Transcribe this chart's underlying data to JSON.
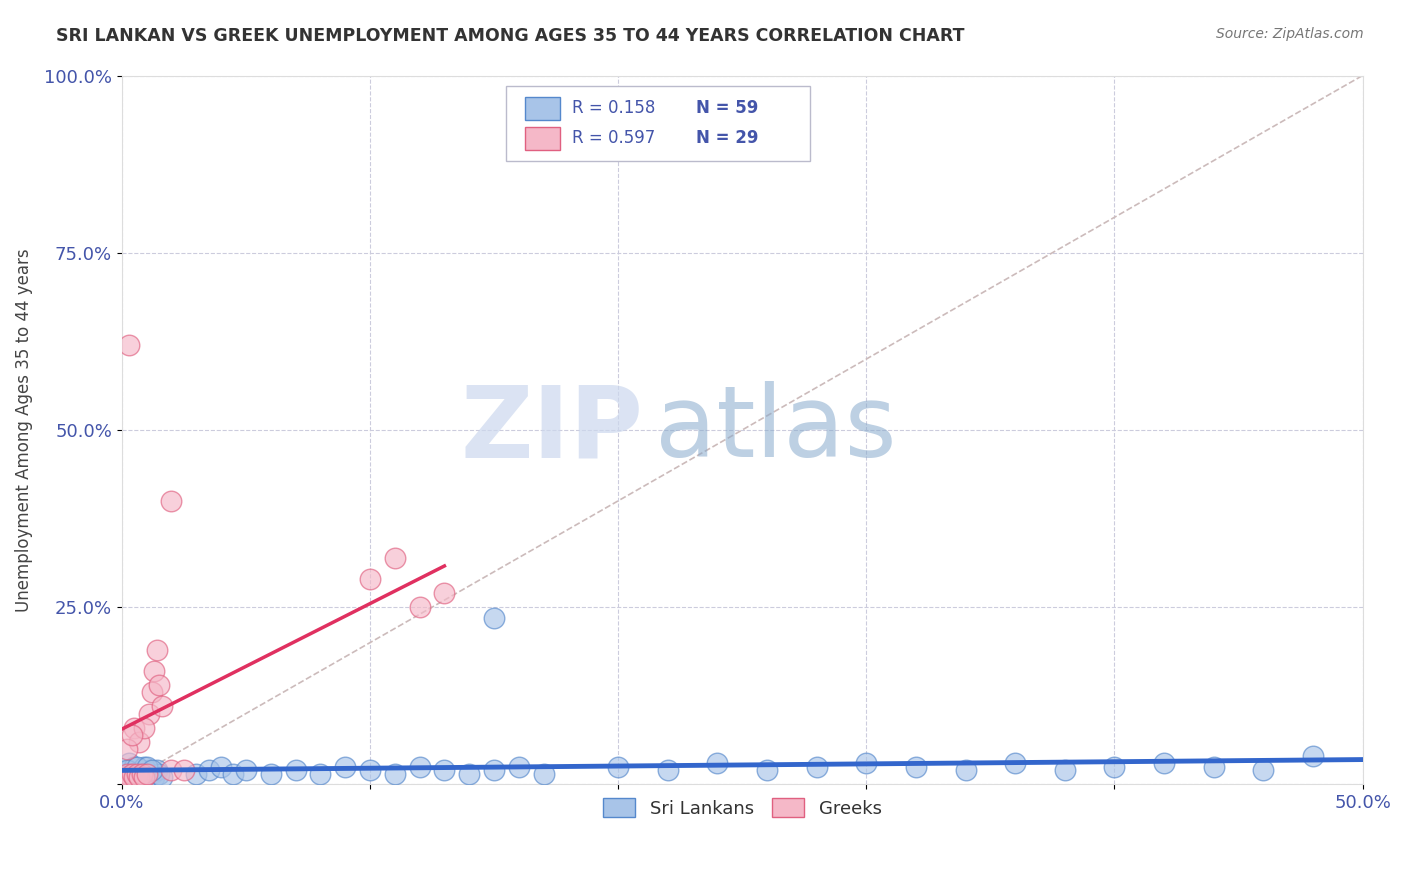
{
  "title": "SRI LANKAN VS GREEK UNEMPLOYMENT AMONG AGES 35 TO 44 YEARS CORRELATION CHART",
  "source": "Source: ZipAtlas.com",
  "ylabel": "Unemployment Among Ages 35 to 44 years",
  "xlim": [
    0.0,
    0.5
  ],
  "ylim": [
    0.0,
    1.0
  ],
  "xticks": [
    0.0,
    0.1,
    0.2,
    0.3,
    0.4,
    0.5
  ],
  "xticklabels": [
    "0.0%",
    "",
    "",
    "",
    "",
    "50.0%"
  ],
  "yticks": [
    0.0,
    0.25,
    0.5,
    0.75,
    1.0
  ],
  "yticklabels": [
    "",
    "25.0%",
    "50.0%",
    "75.0%",
    "100.0%"
  ],
  "sri_lankan_fill": "#a8c4e8",
  "sri_lankan_edge": "#5588cc",
  "greek_fill": "#f5b8c8",
  "greek_edge": "#e06080",
  "sri_trend_color": "#3366cc",
  "greek_trend_color": "#e03060",
  "diag_color": "#ccbbbb",
  "sri_r": 0.158,
  "sri_n": 59,
  "greek_r": 0.597,
  "greek_n": 29,
  "bg_color": "#ffffff",
  "grid_color": "#ccccdd",
  "watermark_text": "ZIPat",
  "watermark_text2": "las",
  "watermark_color1": "#c5d5ee",
  "watermark_color2": "#88aad0",
  "tick_color": "#4455aa",
  "sri_x": [
    0.001,
    0.002,
    0.003,
    0.004,
    0.005,
    0.006,
    0.007,
    0.008,
    0.009,
    0.01,
    0.011,
    0.012,
    0.013,
    0.014,
    0.015,
    0.016,
    0.003,
    0.005,
    0.007,
    0.009,
    0.002,
    0.004,
    0.006,
    0.008,
    0.01,
    0.012,
    0.03,
    0.035,
    0.04,
    0.045,
    0.05,
    0.06,
    0.07,
    0.08,
    0.09,
    0.1,
    0.11,
    0.12,
    0.13,
    0.14,
    0.15,
    0.16,
    0.17,
    0.2,
    0.22,
    0.24,
    0.26,
    0.28,
    0.3,
    0.32,
    0.34,
    0.36,
    0.38,
    0.4,
    0.42,
    0.44,
    0.46,
    0.48,
    0.15
  ],
  "sri_y": [
    0.015,
    0.01,
    0.02,
    0.015,
    0.01,
    0.015,
    0.01,
    0.02,
    0.015,
    0.01,
    0.02,
    0.015,
    0.01,
    0.02,
    0.015,
    0.01,
    0.03,
    0.025,
    0.01,
    0.025,
    0.02,
    0.015,
    0.025,
    0.015,
    0.025,
    0.02,
    0.015,
    0.02,
    0.025,
    0.015,
    0.02,
    0.015,
    0.02,
    0.015,
    0.025,
    0.02,
    0.015,
    0.025,
    0.02,
    0.015,
    0.02,
    0.025,
    0.015,
    0.025,
    0.02,
    0.03,
    0.02,
    0.025,
    0.03,
    0.025,
    0.02,
    0.03,
    0.02,
    0.025,
    0.03,
    0.025,
    0.02,
    0.04,
    0.235
  ],
  "greek_x": [
    0.001,
    0.002,
    0.003,
    0.004,
    0.005,
    0.006,
    0.007,
    0.008,
    0.009,
    0.01,
    0.011,
    0.012,
    0.013,
    0.014,
    0.015,
    0.016,
    0.003,
    0.005,
    0.007,
    0.009,
    0.002,
    0.004,
    0.02,
    0.025,
    0.1,
    0.11,
    0.12,
    0.13,
    0.02
  ],
  "greek_y": [
    0.01,
    0.015,
    0.01,
    0.015,
    0.01,
    0.015,
    0.01,
    0.015,
    0.01,
    0.015,
    0.1,
    0.13,
    0.16,
    0.19,
    0.14,
    0.11,
    0.62,
    0.08,
    0.06,
    0.08,
    0.05,
    0.07,
    0.02,
    0.02,
    0.29,
    0.32,
    0.25,
    0.27,
    0.4
  ]
}
